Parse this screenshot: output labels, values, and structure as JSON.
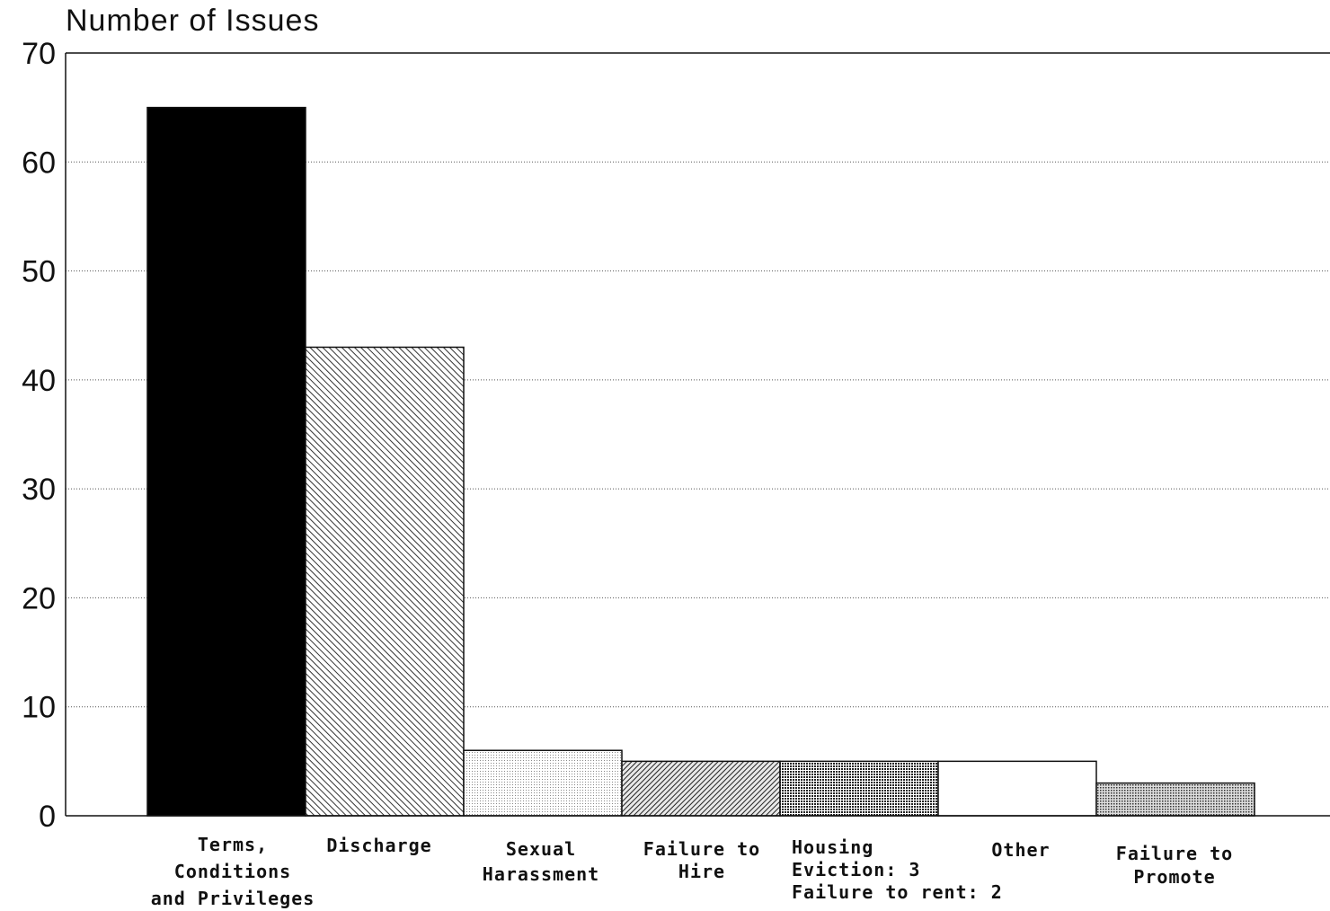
{
  "chart_data": {
    "type": "bar",
    "ylabel": "Number of Issues",
    "xlabel": "",
    "ylim": [
      0,
      70
    ],
    "yticks": [
      0,
      10,
      20,
      30,
      40,
      50,
      60,
      70
    ],
    "grid": "horizontal-dotted",
    "categories": [
      {
        "label_lines": [
          "Terms,",
          "Conditions",
          "and Privileges"
        ],
        "pattern": "solid-black"
      },
      {
        "label_lines": [
          "Discharge"
        ],
        "pattern": "diagonal-hatch"
      },
      {
        "label_lines": [
          "Sexual",
          "Harassment"
        ],
        "pattern": "light-dots"
      },
      {
        "label_lines": [
          "Failure to",
          "Hire"
        ],
        "pattern": "dense-hatch"
      },
      {
        "label_lines": [
          "Housing",
          "Eviction: 3",
          "Failure to rent: 2"
        ],
        "pattern": "crosshatch-dots"
      },
      {
        "label_lines": [
          "Other"
        ],
        "pattern": "white"
      },
      {
        "label_lines": [
          "Failure to",
          "Promote"
        ],
        "pattern": "medium-dots"
      }
    ],
    "values": [
      65,
      43,
      6,
      5,
      5,
      5,
      3
    ]
  }
}
